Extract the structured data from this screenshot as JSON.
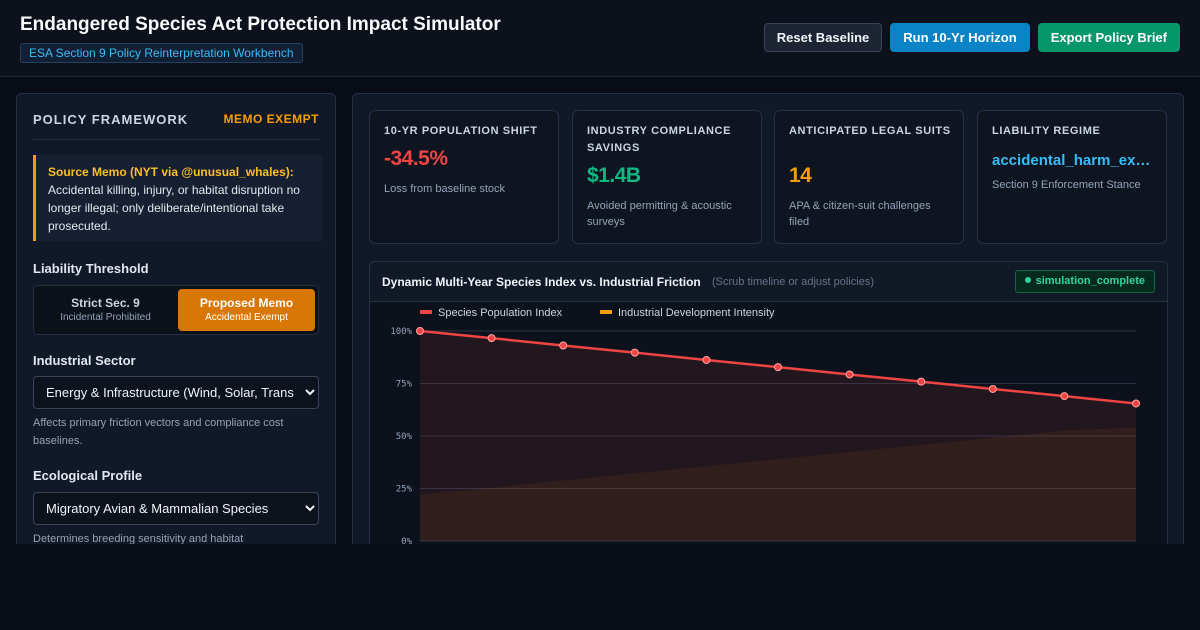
{
  "header": {
    "title": "Endangered Species Act Protection Impact Simulator",
    "subtitle": "ESA Section 9 Policy Reinterpretation Workbench",
    "buttons": {
      "reset": "Reset Baseline",
      "run": "Run 10-Yr Horizon",
      "export": "Export Policy Brief"
    }
  },
  "sidebar": {
    "title": "POLICY FRAMEWORK",
    "badge": "MEMO EXEMPT",
    "memo": {
      "source": "Source Memo (NYT via @unusual_whales):",
      "text": "Accidental killing, injury, or habitat disruption no longer illegal; only deliberate/intentional take prosecuted."
    },
    "liability": {
      "label": "Liability Threshold",
      "options": [
        {
          "title": "Strict Sec. 9",
          "sub": "Incidental Prohibited",
          "selected": false
        },
        {
          "title": "Proposed Memo",
          "sub": "Accidental Exempt",
          "selected": true
        }
      ]
    },
    "sector": {
      "label": "Industrial Sector",
      "value": "Energy & Infrastructure (Wind, Solar, Trans",
      "helper": "Affects primary friction vectors and compliance cost baselines."
    },
    "ecology": {
      "label": "Ecological Profile",
      "value": "Migratory Avian & Mammalian Species",
      "helper": "Determines breeding sensitivity and habitat"
    }
  },
  "kpis": [
    {
      "label": "10-Yr Population Shift",
      "value": "-34.5%",
      "note": "Loss from baseline stock",
      "color": "#ef4444"
    },
    {
      "label": "Industry Compliance Savings",
      "value": "$1.4B",
      "note": "Avoided permitting & acoustic surveys",
      "color": "#10b981"
    },
    {
      "label": "Anticipated Legal Suits",
      "value": "14",
      "note": "APA & citizen-suit challenges filed",
      "color": "#f59e0b"
    },
    {
      "label": "Liability Regime",
      "value": "accidental_harm_exempt",
      "note": "Section 9 Enforcement Stance",
      "color": "#38bdf8"
    }
  ],
  "chart": {
    "title": "Dynamic Multi-Year Species Index vs. Industrial Friction",
    "hint": "(Scrub timeline or adjust policies)",
    "status": "simulation_complete"
  },
  "chart_data": {
    "type": "line",
    "x": [
      0,
      1,
      2,
      3,
      4,
      5,
      6,
      7,
      8,
      9,
      10
    ],
    "series": [
      {
        "name": "Species Population Index",
        "values": [
          100,
          96.6,
          93.1,
          89.7,
          86.2,
          82.8,
          79.3,
          75.9,
          72.4,
          69.0,
          65.5
        ],
        "color": "#ef4444"
      },
      {
        "name": "Industrial Development Intensity",
        "values": [
          22,
          25.4,
          28.8,
          32.2,
          35.6,
          39,
          42.4,
          45.8,
          49.2,
          52.6,
          54
        ],
        "color": "#f59e0b"
      }
    ],
    "yticks": [
      "0%",
      "25%",
      "50%",
      "75%",
      "100%"
    ],
    "ylim": [
      0,
      100
    ],
    "grid": true,
    "legend": "top-left"
  }
}
